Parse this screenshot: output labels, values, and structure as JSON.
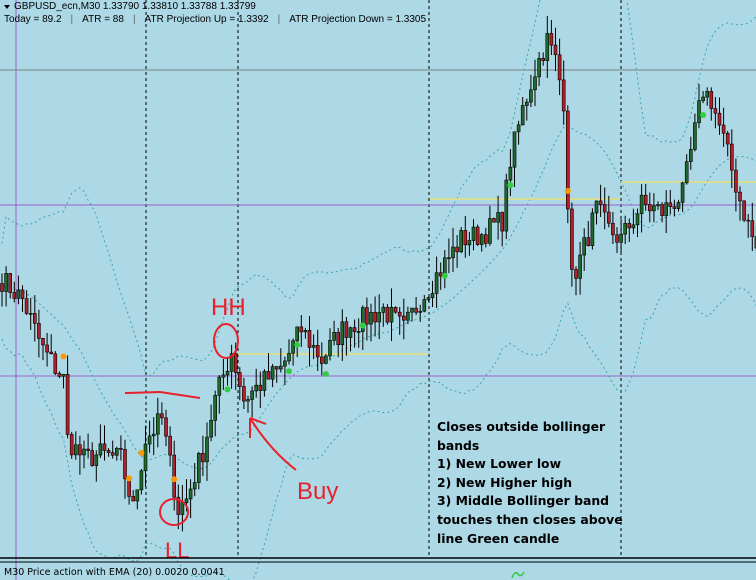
{
  "header": {
    "symbol_line": "GBPUSD_ecn,M30  1.33790 1.33810 1.33788 1.33799",
    "stats": [
      "Today = 89.2",
      "ATR = 88",
      "ATR Projection Up = 1.3392",
      "ATR Projection Down = 1.3305"
    ],
    "separator": "|"
  },
  "subwindow": {
    "label": "M30 Price action with EMA (20) 0.0020 0.0041"
  },
  "annotations": {
    "hh": "HH",
    "ll": "LL",
    "buy": "Buy",
    "note_lines": [
      "Closes outside bollinger",
      "bands",
      "1) New Lower low",
      "2) New Higher high",
      "3) Middle Bollinger band",
      "touches then closes above",
      "line Green candle"
    ]
  },
  "colors": {
    "background": "#add8e6",
    "bull_candle": "#1e6b2a",
    "bear_candle": "#b3202a",
    "bollinger": "#3aa6a6",
    "buy_dot": "#33cc44",
    "sell_dot": "#ff9900",
    "level_line": "#e8e07a",
    "annotation": "#e8202a"
  },
  "chart_data": {
    "type": "candlestick",
    "symbol": "GBPUSD_ecn",
    "timeframe": "M30",
    "last_ohlc": {
      "open": 1.3379,
      "high": 1.3381,
      "low": 1.33788,
      "close": 1.33799
    },
    "indicators": [
      "Bollinger Bands",
      "EMA (20)"
    ],
    "ylim": [
      1.3281,
      1.342
    ],
    "approx_close_path": [
      [
        0,
        1.335
      ],
      [
        5,
        1.3345
      ],
      [
        10,
        1.33325
      ],
      [
        15,
        1.3325
      ],
      [
        16,
        1.331
      ],
      [
        20,
        1.3305
      ],
      [
        24,
        1.33063
      ],
      [
        29,
        1.3305
      ],
      [
        32,
        1.32925
      ],
      [
        35,
        1.331
      ],
      [
        39,
        1.3315
      ],
      [
        43,
        1.32925
      ],
      [
        45,
        1.3295
      ],
      [
        49,
        1.3307
      ],
      [
        52,
        1.332
      ],
      [
        56,
        1.3332
      ],
      [
        59,
        1.332
      ],
      [
        63,
        1.33238
      ],
      [
        68,
        1.33275
      ],
      [
        73,
        1.33375
      ],
      [
        78,
        1.333
      ],
      [
        83,
        1.33375
      ],
      [
        88,
        1.334
      ],
      [
        93,
        1.33425
      ],
      [
        98,
        1.33375
      ],
      [
        102,
        1.3345
      ],
      [
        107,
        1.33525
      ],
      [
        112,
        1.336
      ],
      [
        117,
        1.33613
      ],
      [
        122,
        1.3365
      ],
      [
        124,
        1.338
      ],
      [
        127,
        1.33925
      ],
      [
        130,
        1.34025
      ],
      [
        133,
        1.341
      ],
      [
        135,
        1.3405
      ],
      [
        137,
        1.3395
      ],
      [
        138,
        1.337
      ],
      [
        139,
        1.335
      ],
      [
        141,
        1.3355
      ],
      [
        145,
        1.33675
      ],
      [
        148,
        1.33625
      ],
      [
        151,
        1.336
      ],
      [
        156,
        1.33688
      ],
      [
        161,
        1.3367
      ],
      [
        166,
        1.33713
      ],
      [
        171,
        1.33975
      ],
      [
        173,
        1.3395
      ],
      [
        176,
        1.3385
      ],
      [
        180,
        1.337
      ],
      [
        184,
        1.33575
      ]
    ],
    "signals_buy": [
      55,
      70,
      72,
      79,
      88,
      108,
      124,
      171
    ],
    "signals_sell": [
      15,
      31,
      34,
      42,
      138
    ]
  }
}
